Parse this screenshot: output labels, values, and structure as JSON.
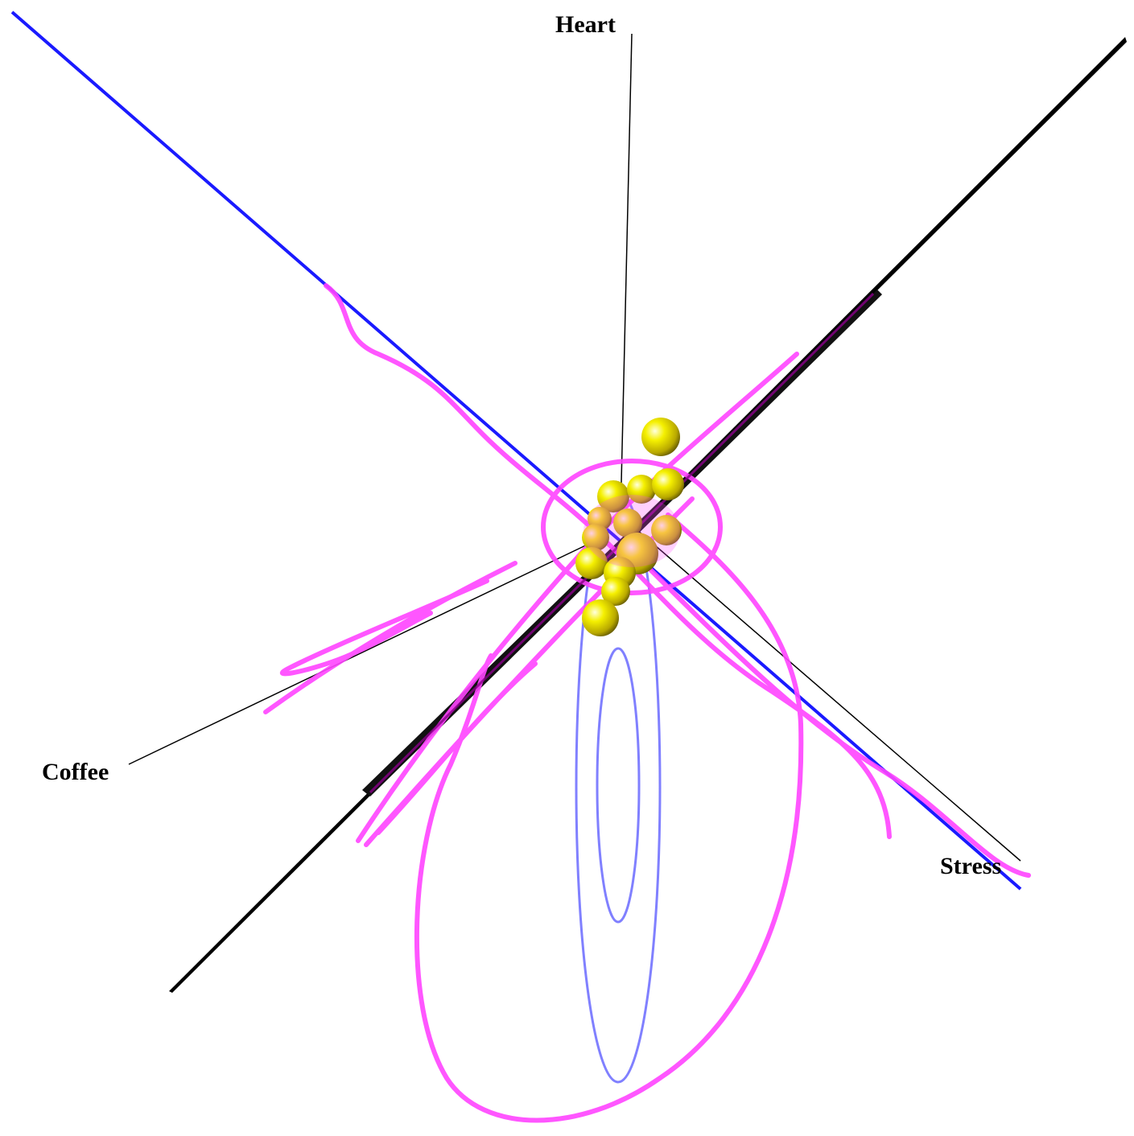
{
  "axes": [
    {
      "label": "Heart"
    },
    {
      "label": "Coffee"
    },
    {
      "label": "Stress"
    }
  ]
}
